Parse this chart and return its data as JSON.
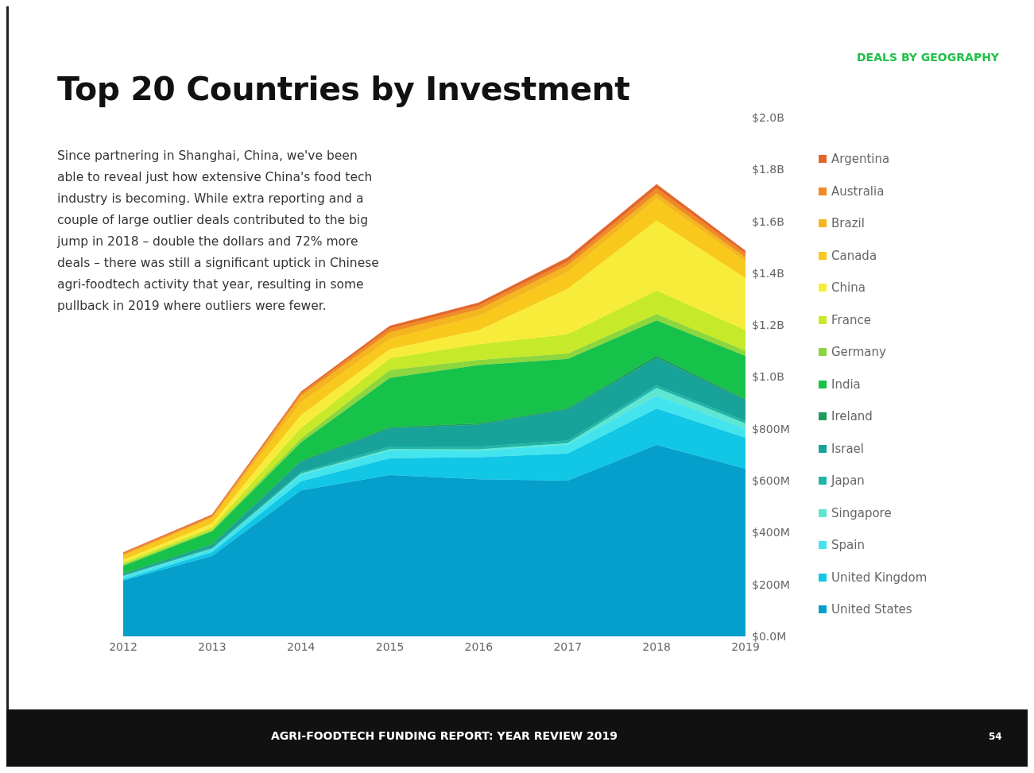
{
  "chart_data": {
    "type": "area",
    "title": "Top 20 Countries by Investment",
    "subtitle": "DEALS BY GEOGRAPHY",
    "annotations": [
      "Since partnering in Shanghai, China, we've been able to reveal just how extensive China's food tech industry is becoming. While extra reporting and a couple of large outlier deals contributed to the big jump in 2018 – double the dollars and 72% more deals – there was still a significant uptick in Chinese agri-foodtech activity that year, resulting in some pullback in 2019 where outliers were fewer.",
      "AGRI-FOODTECH FUNDING REPORT: YEAR REVIEW 2019",
      "54"
    ],
    "categories": [
      "2012",
      "2013",
      "2014",
      "2015",
      "2016",
      "2017",
      "2018",
      "2019"
    ],
    "stacked": true,
    "legend": "right",
    "grid": false,
    "ylim": [
      0,
      2000000000
    ],
    "yticks": [
      {
        "value": 0,
        "label": "$0.0M"
      },
      {
        "value": 200000000,
        "label": "$200M"
      },
      {
        "value": 400000000,
        "label": "$400M"
      },
      {
        "value": 600000000,
        "label": "$600M"
      },
      {
        "value": 800000000,
        "label": "$800M"
      },
      {
        "value": 1000000000,
        "label": "$1.0B"
      },
      {
        "value": 1200000000,
        "label": "$1.2B"
      },
      {
        "value": 1400000000,
        "label": "$1.4B"
      },
      {
        "value": 1600000000,
        "label": "$1.6B"
      },
      {
        "value": 1800000000,
        "label": "$1.8B"
      },
      {
        "value": 2000000000,
        "label": "$2.0B"
      }
    ],
    "series": [
      {
        "name": "United States",
        "color": "#069fcb",
        "values": [
          215000000,
          310000000,
          563000000,
          622000000,
          606000000,
          600000000,
          738000000,
          646000000
        ]
      },
      {
        "name": "United Kingdom",
        "color": "#12c7e6",
        "values": [
          5000000,
          15000000,
          35000000,
          65000000,
          85000000,
          105000000,
          140000000,
          120000000
        ]
      },
      {
        "name": "Spain",
        "color": "#44e4ee",
        "values": [
          10000000,
          10000000,
          25000000,
          30000000,
          25000000,
          35000000,
          50000000,
          35000000
        ]
      },
      {
        "name": "Singapore",
        "color": "#5ee6d2",
        "values": [
          3000000,
          3000000,
          5000000,
          5000000,
          5000000,
          5000000,
          30000000,
          20000000
        ]
      },
      {
        "name": "Japan",
        "color": "#20b6a6",
        "values": [
          2000000,
          5000000,
          5000000,
          10000000,
          10000000,
          10000000,
          10000000,
          10000000
        ]
      },
      {
        "name": "Israel",
        "color": "#17a29a",
        "values": [
          5000000,
          10000000,
          40000000,
          70000000,
          85000000,
          120000000,
          105000000,
          80000000
        ]
      },
      {
        "name": "Ireland",
        "color": "#1a9e5a",
        "values": [
          2000000,
          2000000,
          5000000,
          5000000,
          5000000,
          5000000,
          10000000,
          5000000
        ]
      },
      {
        "name": "India",
        "color": "#17c24a",
        "values": [
          30000000,
          50000000,
          70000000,
          190000000,
          225000000,
          190000000,
          135000000,
          165000000
        ]
      },
      {
        "name": "Germany",
        "color": "#8cd63e",
        "values": [
          5000000,
          5000000,
          15000000,
          30000000,
          20000000,
          20000000,
          25000000,
          20000000
        ]
      },
      {
        "name": "France",
        "color": "#c6e92a",
        "values": [
          8000000,
          10000000,
          40000000,
          45000000,
          60000000,
          75000000,
          90000000,
          80000000
        ]
      },
      {
        "name": "China",
        "color": "#f8ec3a",
        "values": [
          10000000,
          15000000,
          50000000,
          35000000,
          55000000,
          175000000,
          270000000,
          200000000
        ]
      },
      {
        "name": "Canada",
        "color": "#f8c81c",
        "values": [
          15000000,
          20000000,
          50000000,
          40000000,
          55000000,
          65000000,
          85000000,
          65000000
        ]
      },
      {
        "name": "Brazil",
        "color": "#f5b51f",
        "values": [
          5000000,
          5000000,
          25000000,
          25000000,
          25000000,
          25000000,
          20000000,
          15000000
        ]
      },
      {
        "name": "Australia",
        "color": "#ef8a26",
        "values": [
          5000000,
          5000000,
          10000000,
          15000000,
          15000000,
          15000000,
          20000000,
          15000000
        ]
      },
      {
        "name": "Argentina",
        "color": "#e2662a",
        "values": [
          3000000,
          4000000,
          5000000,
          10000000,
          10000000,
          15000000,
          15000000,
          10000000
        ]
      }
    ]
  }
}
